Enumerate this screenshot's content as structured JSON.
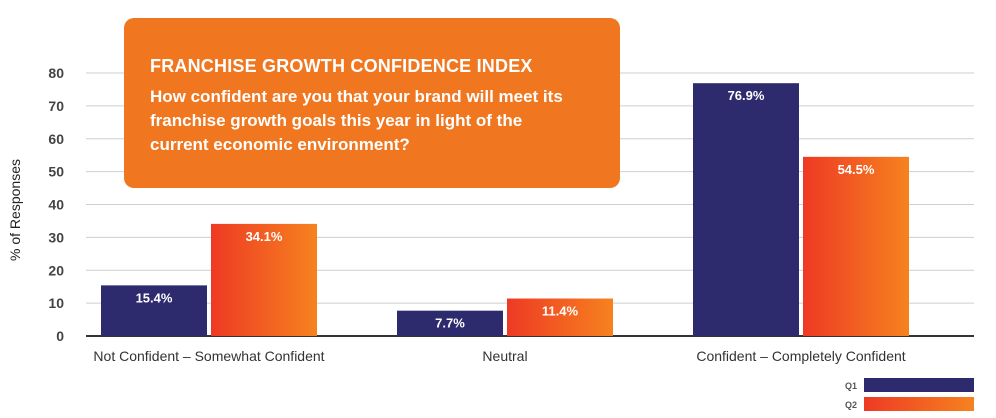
{
  "callout": {
    "title": "FRANCHISE GROWTH CONFIDENCE INDEX",
    "question": "How confident are you that your brand will meet its franchise growth goals this year in light of the current economic environment?"
  },
  "chart_data": {
    "type": "bar",
    "ylabel": "% of Responses",
    "xlabel": "",
    "ylim": [
      0,
      80
    ],
    "yticks": [
      0,
      10,
      20,
      30,
      40,
      50,
      60,
      70,
      80
    ],
    "grid": true,
    "categories": [
      "Not Confident – Somewhat Confident",
      "Neutral",
      "Confident – Completely Confident"
    ],
    "series": [
      {
        "name": "Q1",
        "values": [
          15.4,
          7.7,
          76.9
        ],
        "labels": [
          "15.4%",
          "7.7%",
          "76.9%"
        ],
        "color": "#2d2a6e"
      },
      {
        "name": "Q2",
        "values": [
          34.1,
          11.4,
          54.5
        ],
        "labels": [
          "34.1%",
          "11.4%",
          "54.5%"
        ],
        "color_start": "#ee3a24",
        "color_end": "#f6821f"
      }
    ],
    "legend_position": "bottom-right"
  }
}
